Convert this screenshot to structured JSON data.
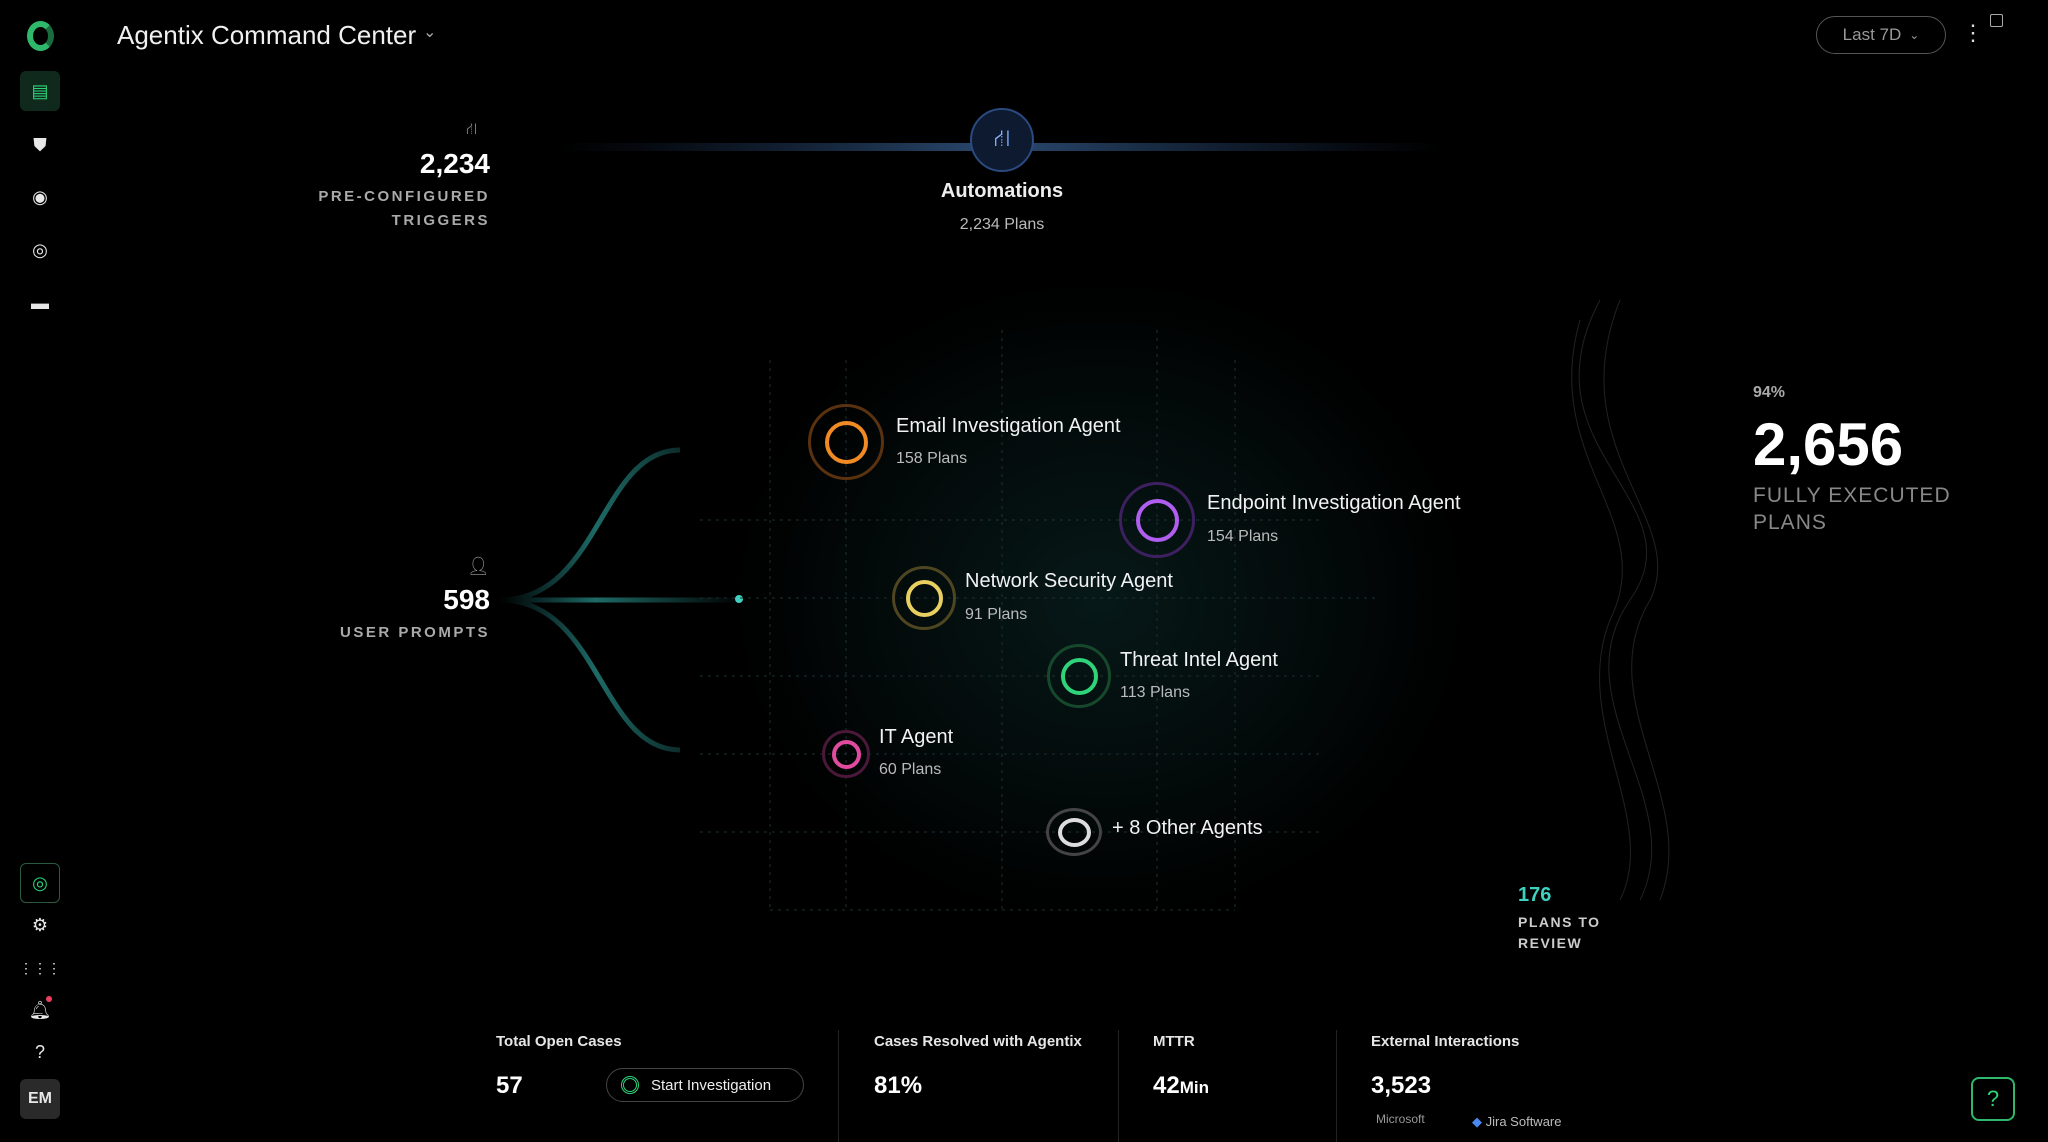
{
  "header": {
    "title": "Agentix Command Center",
    "time_range": "Last 7D"
  },
  "sidebar": {
    "top": [
      "dashboard-icon",
      "shield-alert-icon",
      "eye-icon",
      "target-icon",
      "store-icon"
    ],
    "bottom": [
      "agentix-icon",
      "gear-icon",
      "grid-icon",
      "bell-icon",
      "help-icon"
    ],
    "avatar": "EM"
  },
  "triggers": {
    "value": "2,234",
    "line1": "PRE-CONFIGURED",
    "line2": "TRIGGERS"
  },
  "prompts": {
    "value": "598",
    "label": "USER PROMPTS"
  },
  "automations": {
    "title": "Automations",
    "plans": "2,234 Plans"
  },
  "agents": [
    {
      "name": "Email Investigation Agent",
      "plans": "158 Plans",
      "color": "#f08a24"
    },
    {
      "name": "Endpoint Investigation Agent",
      "plans": "154 Plans",
      "color": "#b05ef0"
    },
    {
      "name": "Network Security Agent",
      "plans": "91 Plans",
      "color": "#e8d060"
    },
    {
      "name": "Threat Intel Agent",
      "plans": "113 Plans",
      "color": "#2fd47a"
    },
    {
      "name": "IT Agent",
      "plans": "60 Plans",
      "color": "#e04ba0"
    },
    {
      "name": "+ 8 Other Agents",
      "color": "#dddddd"
    }
  ],
  "executed": {
    "percent": "94%",
    "value": "2,656",
    "line1": "FULLY EXECUTED",
    "line2": "PLANS"
  },
  "review": {
    "value": "176",
    "line1": "PLANS TO",
    "line2": "REVIEW",
    "color": "#3fd0c0"
  },
  "kpis": {
    "open": {
      "label": "Total Open Cases",
      "value": "57",
      "button": "Start Investigation"
    },
    "resolved": {
      "label": "Cases Resolved with Agentix",
      "value": "81%"
    },
    "mttr": {
      "label": "MTTR",
      "value": "42",
      "unit": "Min"
    },
    "external": {
      "label": "External Interactions",
      "value": "3,523",
      "logo1": "Microsoft",
      "logo2": "Jira Software"
    }
  }
}
